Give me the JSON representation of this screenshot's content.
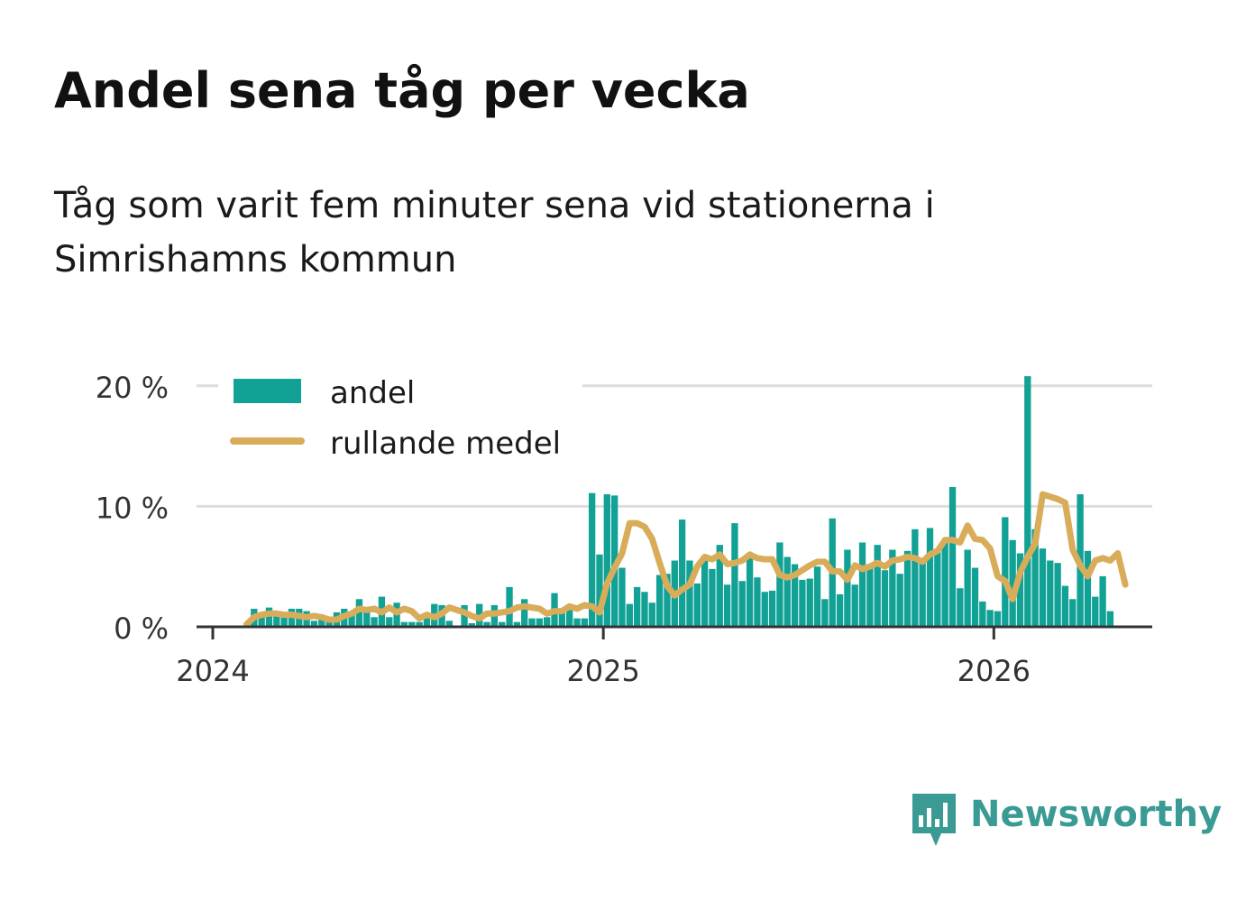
{
  "title": "Andel sena tåg per vecka",
  "subtitle": "Tåg som varit fem minuter sena vid stationerna i Simrishamns kommun",
  "brand": {
    "name": "Newsworthy",
    "logo_icon": "bar-chart-speech-bubble-icon",
    "color": "#3a9a94"
  },
  "colors": {
    "bars": "#12a195",
    "line": "#d9ac5a",
    "grid": "#dddddd",
    "axis": "#333333"
  },
  "chart_data": {
    "type": "bar",
    "x_axis": {
      "type": "time",
      "unit": "week",
      "start_week": "2024-W01",
      "tick_labels": [
        "2024",
        "2025",
        "2026"
      ],
      "range": [
        "2023-W49",
        "2026-W16"
      ]
    },
    "y_axis": {
      "tick_labels": [
        "0 %",
        "10 %",
        "20 %"
      ],
      "ticks": [
        0,
        10,
        20
      ],
      "range": [
        0,
        20
      ],
      "unit": "%"
    },
    "grid": true,
    "legend": {
      "position": "top-left",
      "entries": [
        {
          "label": "andel",
          "kind": "bar"
        },
        {
          "label": "rullande medel",
          "kind": "line"
        }
      ]
    },
    "series": [
      {
        "name": "andel",
        "kind": "bar",
        "values": [
          0,
          0,
          0,
          0,
          0,
          1.5,
          1.2,
          1.6,
          0.9,
          1.1,
          1.5,
          1.5,
          1.3,
          0.5,
          0.6,
          0.6,
          1.2,
          1.5,
          1.1,
          2.3,
          1.5,
          0.8,
          2.5,
          0.8,
          2.0,
          0.4,
          0.4,
          0.4,
          0.8,
          1.9,
          1.8,
          0.5,
          0,
          1.8,
          0.3,
          1.9,
          0.4,
          1.8,
          0.4,
          3.3,
          0.4,
          2.3,
          0.7,
          0.7,
          0.8,
          2.8,
          1.3,
          1.4,
          0.7,
          0.7,
          11.1,
          6.0,
          11.0,
          10.9,
          4.9,
          1.9,
          3.3,
          2.9,
          2.0,
          4.3,
          4.4,
          5.5,
          8.9,
          5.5,
          3.6,
          5.5,
          4.8,
          6.8,
          3.5,
          8.6,
          3.8,
          6.1,
          4.1,
          2.9,
          3.0,
          7.0,
          5.8,
          5.2,
          3.9,
          4.0,
          5.0,
          2.3,
          9.0,
          2.7,
          6.4,
          3.5,
          7.0,
          4.9,
          6.8,
          4.7,
          6.4,
          4.4,
          6.3,
          8.1,
          5.7,
          8.2,
          6.4,
          7.0,
          11.6,
          3.2,
          6.4,
          4.9,
          2.1,
          1.4,
          1.3,
          9.1,
          7.2,
          6.1,
          20.8,
          8.1,
          6.5,
          5.5,
          5.3,
          3.4,
          2.3,
          11.0,
          6.3,
          2.5,
          4.2,
          1.3
        ]
      },
      {
        "name": "rullande medel",
        "kind": "line",
        "values": [
          null,
          null,
          null,
          null,
          0.2,
          0.8,
          1.0,
          1.1,
          1.1,
          1.0,
          1.0,
          0.9,
          0.8,
          0.9,
          0.8,
          0.6,
          0.6,
          0.9,
          1.1,
          1.5,
          1.4,
          1.5,
          1.2,
          1.6,
          1.2,
          1.5,
          1.3,
          0.7,
          1.0,
          0.8,
          1.1,
          1.6,
          1.4,
          1.2,
          0.9,
          0.7,
          1.1,
          1.1,
          1.2,
          1.3,
          1.6,
          1.7,
          1.6,
          1.5,
          1.1,
          1.3,
          1.3,
          1.7,
          1.5,
          1.8,
          1.7,
          1.2,
          3.6,
          4.9,
          6.1,
          8.6,
          8.6,
          8.3,
          7.3,
          5.3,
          3.4,
          2.6,
          3.1,
          3.5,
          5.0,
          5.8,
          5.6,
          6.0,
          5.2,
          5.3,
          5.5,
          6.0,
          5.7,
          5.6,
          5.6,
          4.3,
          4.1,
          4.3,
          4.7,
          5.1,
          5.4,
          5.4,
          4.6,
          4.6,
          3.9,
          5.1,
          4.8,
          5.0,
          5.3,
          5.0,
          5.5,
          5.6,
          5.8,
          5.7,
          5.4,
          6.0,
          6.3,
          7.2,
          7.2,
          7.0,
          8.4,
          7.3,
          7.2,
          6.5,
          4.2,
          3.8,
          2.3,
          4.5,
          5.8,
          6.9,
          11.0,
          10.8,
          10.6,
          10.3,
          6.4,
          5.1,
          4.2,
          5.5,
          5.7,
          5.5,
          6.1,
          3.5
        ]
      }
    ]
  }
}
